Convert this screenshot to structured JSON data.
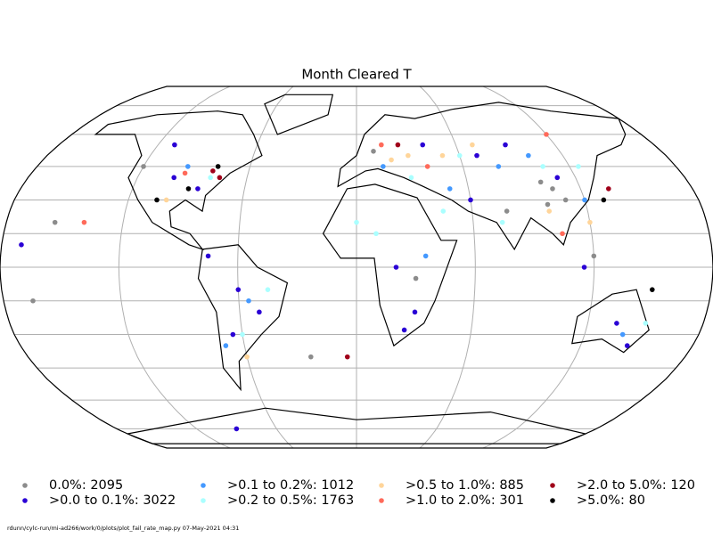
{
  "map": {
    "title": "Month Cleared T",
    "categories": [
      {
        "text": "0.0%: 2095",
        "color": "#8c8c8c",
        "points": [
          [
            105,
            35
          ],
          [
            110,
            30
          ],
          [
            100,
            38
          ],
          [
            30,
            -5
          ],
          [
            -120,
            45
          ],
          [
            -155,
            20
          ],
          [
            -165,
            -15
          ],
          [
            -25,
            -40
          ],
          [
            120,
            5
          ],
          [
            78,
            25
          ],
          [
            10,
            52
          ],
          [
            100,
            28
          ]
        ]
      },
      {
        "text": ">0.0 to 0.1%: 3022",
        "color": "#2a00d5",
        "points": [
          [
            -100,
            40
          ],
          [
            -85,
            35
          ],
          [
            -60,
            -10
          ],
          [
            -50,
            -20
          ],
          [
            -65,
            -30
          ],
          [
            20,
            0
          ],
          [
            30,
            -20
          ],
          [
            70,
            50
          ],
          [
            90,
            55
          ],
          [
            110,
            40
          ],
          [
            135,
            -25
          ],
          [
            145,
            -35
          ],
          [
            -110,
            55
          ],
          [
            40,
            55
          ],
          [
            -75,
            5
          ],
          [
            25,
            -28
          ],
          [
            115,
            0
          ],
          [
            60,
            30
          ],
          [
            -170,
            10
          ],
          [
            -90,
            -75
          ]
        ]
      },
      {
        "text": ">0.1 to 0.2%: 1012",
        "color": "#4499ff",
        "points": [
          [
            -95,
            45
          ],
          [
            -55,
            -15
          ],
          [
            15,
            45
          ],
          [
            80,
            45
          ],
          [
            120,
            30
          ],
          [
            140,
            -30
          ],
          [
            35,
            5
          ],
          [
            -70,
            -35
          ],
          [
            100,
            50
          ],
          [
            50,
            35
          ]
        ]
      },
      {
        "text": ">0.2 to 0.5%: 1763",
        "color": "#aaffff",
        "points": [
          [
            -80,
            40
          ],
          [
            60,
            50
          ],
          [
            105,
            45
          ],
          [
            -45,
            -10
          ],
          [
            10,
            15
          ],
          [
            45,
            25
          ],
          [
            125,
            45
          ],
          [
            -60,
            -30
          ],
          [
            30,
            40
          ],
          [
            150,
            -25
          ],
          [
            0,
            20
          ],
          [
            75,
            20
          ]
        ]
      },
      {
        "text": ">0.5 to 1.0%: 885",
        "color": "#ffd59a",
        "points": [
          [
            50,
            50
          ],
          [
            70,
            55
          ],
          [
            100,
            25
          ],
          [
            -100,
            30
          ],
          [
            20,
            48
          ],
          [
            120,
            20
          ],
          [
            30,
            50
          ],
          [
            -60,
            -40
          ]
        ]
      },
      {
        "text": ">1.0 to 2.0%: 301",
        "color": "#ff6a5a",
        "points": [
          [
            -95,
            42
          ],
          [
            15,
            55
          ],
          [
            40,
            45
          ],
          [
            105,
            15
          ],
          [
            -140,
            20
          ],
          [
            120,
            60
          ]
        ]
      },
      {
        "text": ">2.0 to 5.0%: 120",
        "color": "#a0001a",
        "points": [
          [
            -80,
            43
          ],
          [
            -75,
            40
          ],
          [
            25,
            55
          ],
          [
            135,
            35
          ],
          [
            -5,
            -40
          ]
        ]
      },
      {
        "text": ">5.0%: 80",
        "color": "#000000",
        "points": [
          [
            -78,
            45
          ],
          [
            -90,
            35
          ],
          [
            130,
            30
          ],
          [
            150,
            -10
          ],
          [
            -105,
            30
          ]
        ]
      }
    ],
    "footer": "rdunn/cylc-run/mi-ad266/work/0/plots/plot_fail_rate_map.py   07-May-2021 04:31"
  }
}
